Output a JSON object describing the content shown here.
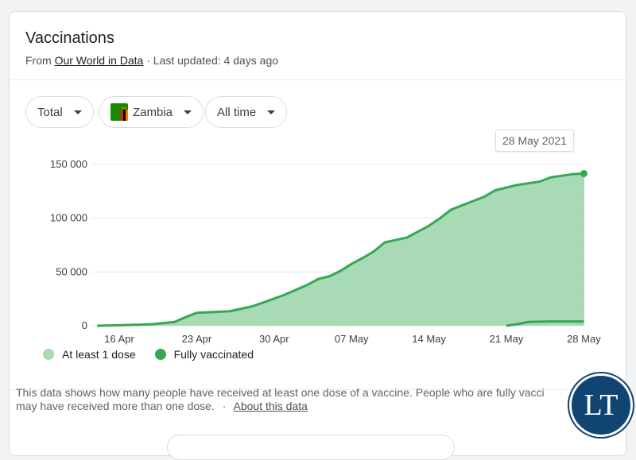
{
  "header": {
    "title": "Vaccinations",
    "source_prefix": "From",
    "source_link": "Our World in Data",
    "updated": "· Last updated: 4 days ago"
  },
  "filters": {
    "metric": "Total",
    "country": "Zambia",
    "range": "All time"
  },
  "tooltip": {
    "date": "28 May 2021"
  },
  "legend": [
    {
      "label": "At least 1 dose",
      "color": "#a8dab5"
    },
    {
      "label": "Fully vaccinated",
      "color": "#34a853"
    }
  ],
  "footnote": {
    "text": "This data shows how many people have received at least one dose of a vaccine. People who are fully vacci",
    "text2": "may have received more than one dose.",
    "separator": "·",
    "link": "About this data"
  },
  "logo": {
    "text": "LT"
  },
  "colors": {
    "area_fill": "#a8dab5",
    "line": "#34a853",
    "grid": "#e8eaed"
  },
  "chart_data": {
    "type": "area",
    "x_tick_labels": [
      "16 Apr",
      "23 Apr",
      "30 Apr",
      "07 May",
      "14 May",
      "21 May",
      "28 May"
    ],
    "y_tick_labels": [
      "0",
      "50 000",
      "100 000",
      "150 000"
    ],
    "ylim": [
      0,
      150000
    ],
    "xlim": [
      "2021-04-14",
      "2021-05-28"
    ],
    "grid": true,
    "legend_position": "bottom",
    "series": [
      {
        "name": "At least 1 dose",
        "points": [
          [
            "2021-04-14",
            0
          ],
          [
            "2021-04-16",
            500
          ],
          [
            "2021-04-18",
            1000
          ],
          [
            "2021-04-19",
            1500
          ],
          [
            "2021-04-20",
            2500
          ],
          [
            "2021-04-21",
            3500
          ],
          [
            "2021-04-22",
            8000
          ],
          [
            "2021-04-23",
            12000
          ],
          [
            "2021-04-26",
            13500
          ],
          [
            "2021-04-28",
            18000
          ],
          [
            "2021-04-29",
            21500
          ],
          [
            "2021-05-01",
            29000
          ],
          [
            "2021-05-03",
            38000
          ],
          [
            "2021-05-04",
            43500
          ],
          [
            "2021-05-05",
            46000
          ],
          [
            "2021-05-06",
            51000
          ],
          [
            "2021-05-07",
            57500
          ],
          [
            "2021-05-08",
            63000
          ],
          [
            "2021-05-09",
            69000
          ],
          [
            "2021-05-10",
            77500
          ],
          [
            "2021-05-12",
            82000
          ],
          [
            "2021-05-13",
            87500
          ],
          [
            "2021-05-14",
            93000
          ],
          [
            "2021-05-15",
            100000
          ],
          [
            "2021-05-16",
            108000
          ],
          [
            "2021-05-17",
            112000
          ],
          [
            "2021-05-18",
            116000
          ],
          [
            "2021-05-19",
            120000
          ],
          [
            "2021-05-20",
            126000
          ],
          [
            "2021-05-22",
            131000
          ],
          [
            "2021-05-24",
            134000
          ],
          [
            "2021-05-25",
            138000
          ],
          [
            "2021-05-27",
            141000
          ],
          [
            "2021-05-28",
            141500
          ]
        ]
      },
      {
        "name": "Fully vaccinated",
        "points": [
          [
            "2021-05-21",
            0
          ],
          [
            "2021-05-22",
            1500
          ],
          [
            "2021-05-23",
            3500
          ],
          [
            "2021-05-25",
            4000
          ],
          [
            "2021-05-28",
            4000
          ]
        ]
      }
    ]
  }
}
